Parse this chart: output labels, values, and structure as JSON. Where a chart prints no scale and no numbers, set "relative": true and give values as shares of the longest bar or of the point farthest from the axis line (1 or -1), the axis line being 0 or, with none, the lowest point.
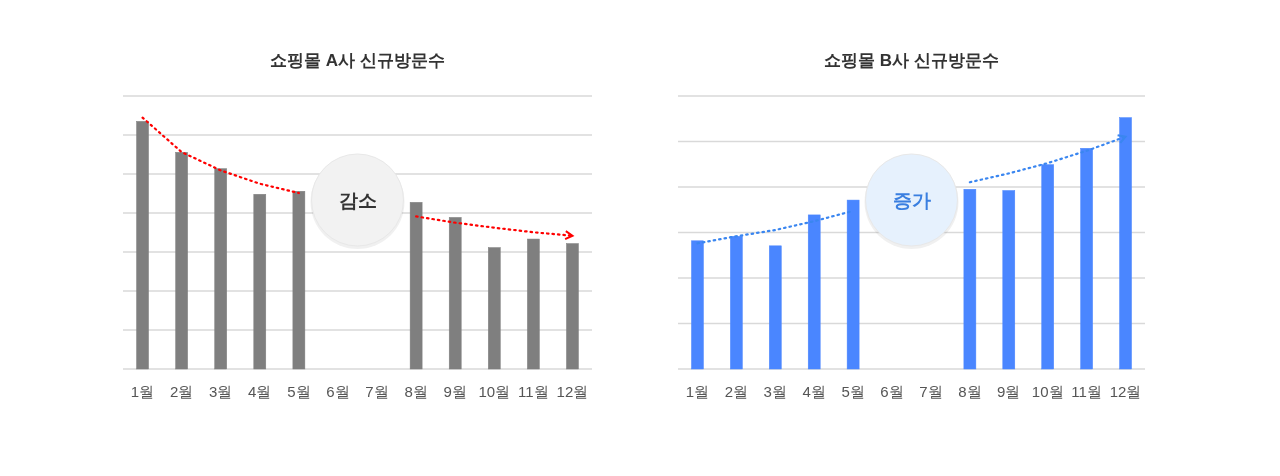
{
  "chart_data": [
    {
      "type": "bar",
      "title": "쇼핑몰 A사 신규방문수",
      "relative": true,
      "grid": true,
      "categories": [
        "1월",
        "2월",
        "3월",
        "4월",
        "5월",
        "6월",
        "7월",
        "8월",
        "9월",
        "10월",
        "11월",
        "12월"
      ],
      "annotations": [
        "감소"
      ],
      "series": [
        {
          "color": "#7f7f7f",
          "values": [
            0.985,
            0.862,
            0.797,
            0.695,
            0.707,
            null,
            null,
            0.663,
            0.603,
            0.483,
            0.517,
            0.499
          ]
        },
        {
          "type": "line",
          "color": "#ff0000",
          "line_style": "dotted",
          "x": [
            "1월",
            "2월",
            "3월",
            "4월",
            "5월",
            "6월",
            "7월",
            "8월",
            "9월",
            "10월",
            "11월",
            "12월"
          ],
          "values": [
            1,
            0.863,
            0.79,
            0.737,
            0.7,
            null,
            null,
            0.607,
            0.582,
            0.562,
            0.544,
            0.53
          ]
        }
      ]
    },
    {
      "type": "bar",
      "title": "쇼핑몰 B사 신규방문수",
      "relative": true,
      "grid": true,
      "categories": [
        "1월",
        "2월",
        "3월",
        "4월",
        "5월",
        "6월",
        "7월",
        "8월",
        "9월",
        "10월",
        "11월",
        "12월"
      ],
      "annotations": [
        "증가"
      ],
      "series": [
        {
          "color": "#4a86ff",
          "values": [
            0.51,
            0.528,
            0.49,
            0.613,
            0.672,
            null,
            null,
            0.715,
            0.71,
            0.813,
            0.878,
            1
          ]
        },
        {
          "type": "line",
          "color": "#3a86f0",
          "line_style": "dotted",
          "x": [
            "1월",
            "2월",
            "3월",
            "4월",
            "5월",
            "6월",
            "7월",
            "8월",
            "9월",
            "10월",
            "11월",
            "12월"
          ],
          "values": [
            0.5,
            0.528,
            0.553,
            0.588,
            0.629,
            null,
            null,
            0.743,
            0.778,
            0.819,
            0.868,
            0.924
          ]
        }
      ]
    }
  ]
}
